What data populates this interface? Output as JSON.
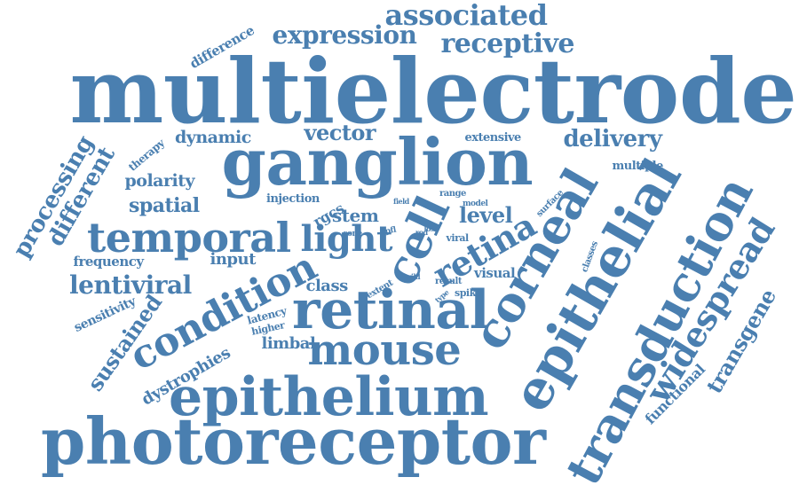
{
  "palette": {
    "word_color": "#4a7fb0",
    "background": "#ffffff"
  },
  "words": [
    {
      "id": "multielectrode",
      "text": "multielectrode",
      "weight": 100
    },
    {
      "id": "photoreceptor",
      "text": "photoreceptor",
      "weight": 86
    },
    {
      "id": "ganglion",
      "text": "ganglion",
      "weight": 84
    },
    {
      "id": "epithelium",
      "text": "epithelium",
      "weight": 70
    },
    {
      "id": "retinal",
      "text": "retinal",
      "weight": 68
    },
    {
      "id": "epithelial",
      "text": "epithelial",
      "weight": 66
    },
    {
      "id": "transduction",
      "text": "transduction",
      "weight": 62
    },
    {
      "id": "corneal",
      "text": "corneal",
      "weight": 58
    },
    {
      "id": "cell",
      "text": "cell",
      "weight": 56
    },
    {
      "id": "temporal",
      "text": "temporal",
      "weight": 52
    },
    {
      "id": "mouse",
      "text": "mouse",
      "weight": 50
    },
    {
      "id": "condition",
      "text": "condition",
      "weight": 46
    },
    {
      "id": "light",
      "text": "light",
      "weight": 44
    },
    {
      "id": "widespread",
      "text": "widespread",
      "weight": 42
    },
    {
      "id": "retina",
      "text": "retina",
      "weight": 40
    },
    {
      "id": "associated",
      "text": "associated",
      "weight": 34
    },
    {
      "id": "expression",
      "text": "expression",
      "weight": 32
    },
    {
      "id": "receptive",
      "text": "receptive",
      "weight": 32
    },
    {
      "id": "lentiviral",
      "text": "lentiviral",
      "weight": 30
    },
    {
      "id": "processing",
      "text": "processing",
      "weight": 30
    },
    {
      "id": "different",
      "text": "different",
      "weight": 30
    },
    {
      "id": "sustained",
      "text": "sustained",
      "weight": 28
    },
    {
      "id": "transgene",
      "text": "transgene",
      "weight": 28
    },
    {
      "id": "delivery",
      "text": "delivery",
      "weight": 28
    },
    {
      "id": "vector",
      "text": "vector",
      "weight": 26
    },
    {
      "id": "level",
      "text": "level",
      "weight": 24
    },
    {
      "id": "stem",
      "text": "stem",
      "weight": 22
    },
    {
      "id": "dynamic",
      "text": "dynamic",
      "weight": 22
    },
    {
      "id": "spatial",
      "text": "spatial",
      "weight": 22
    },
    {
      "id": "polarity",
      "text": "polarity",
      "weight": 22
    },
    {
      "id": "dystrophies",
      "text": "dystrophies",
      "weight": 20
    },
    {
      "id": "class",
      "text": "class",
      "weight": 20
    },
    {
      "id": "limbal",
      "text": "limbal",
      "weight": 20
    },
    {
      "id": "input",
      "text": "input",
      "weight": 20
    },
    {
      "id": "rgcs",
      "text": "rgcs",
      "weight": 18
    },
    {
      "id": "functional",
      "text": "functional",
      "weight": 18
    },
    {
      "id": "difference",
      "text": "difference",
      "weight": 17
    },
    {
      "id": "visual",
      "text": "visual",
      "weight": 16
    },
    {
      "id": "frequency",
      "text": "frequency",
      "weight": 16
    },
    {
      "id": "sensitivity",
      "text": "sensitivity",
      "weight": 15
    },
    {
      "id": "injection",
      "text": "injection",
      "weight": 15
    },
    {
      "id": "extensive",
      "text": "extensive",
      "weight": 14
    },
    {
      "id": "therapy",
      "text": "therapy",
      "weight": 14
    },
    {
      "id": "multiple",
      "text": "multiple",
      "weight": 14
    },
    {
      "id": "latency",
      "text": "latency",
      "weight": 13
    },
    {
      "id": "higher",
      "text": "higher",
      "weight": 12
    },
    {
      "id": "viral",
      "text": "viral",
      "weight": 12
    },
    {
      "id": "spike",
      "text": "spike",
      "weight": 12
    },
    {
      "id": "classes",
      "text": "classes",
      "weight": 11
    },
    {
      "id": "surface",
      "text": "surface",
      "weight": 11
    },
    {
      "id": "result",
      "text": "result",
      "weight": 11
    },
    {
      "id": "extent",
      "text": "extent",
      "weight": 10
    },
    {
      "id": "range",
      "text": "range",
      "weight": 10
    },
    {
      "id": "model",
      "text": "model",
      "weight": 10
    },
    {
      "id": "cpfl",
      "text": "cpfl",
      "weight": 10
    },
    {
      "id": "cone",
      "text": "cone",
      "weight": 10
    },
    {
      "id": "loss",
      "text": "loss",
      "weight": 9
    },
    {
      "id": "field",
      "text": "field",
      "weight": 9
    },
    {
      "id": "rod",
      "text": "rod",
      "weight": 8
    },
    {
      "id": "wild",
      "text": "wild",
      "weight": 8
    },
    {
      "id": "type",
      "text": "type",
      "weight": 8
    }
  ]
}
